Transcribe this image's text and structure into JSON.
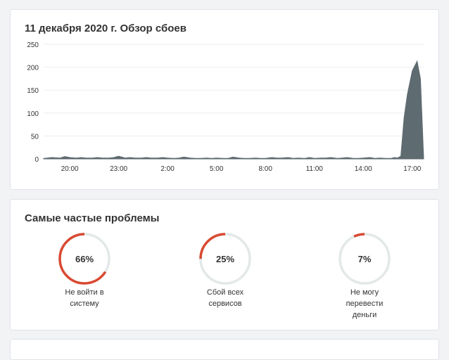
{
  "chart_title": "11 декабря 2020 г. Обзор сбоев",
  "problems_title": "Самые частые проблемы",
  "colors": {
    "area": "#5e6b70",
    "gauge_accent": "#d94a32",
    "gauge_track": "#e3e8e8"
  },
  "chart_data": {
    "type": "area",
    "title": "11 декабря 2020 г. Обзор сбоев",
    "xlabel": "",
    "ylabel": "",
    "ylim": [
      0,
      250
    ],
    "yticks": [
      0,
      50,
      100,
      150,
      200,
      250
    ],
    "xtick_labels": [
      "20:00",
      "23:00",
      "2:00",
      "5:00",
      "8:00",
      "11:00",
      "14:00",
      "17:00"
    ],
    "grid": true,
    "x_hours": [
      0,
      0.5,
      1,
      1.3,
      1.6,
      2,
      2.3,
      2.6,
      3,
      3.3,
      3.6,
      4,
      4.3,
      4.6,
      5,
      5.3,
      5.6,
      6,
      6.3,
      6.6,
      7,
      7.3,
      7.6,
      8,
      8.3,
      8.6,
      9,
      9.3,
      9.6,
      10,
      10.3,
      10.6,
      11,
      11.3,
      11.6,
      12,
      12.3,
      12.6,
      13,
      13.3,
      13.6,
      14,
      14.3,
      14.6,
      15,
      15.3,
      15.6,
      16,
      16.3,
      16.6,
      17,
      17.3,
      17.6,
      18,
      18.3,
      18.6,
      19,
      19.3,
      19.6,
      20,
      20.3,
      20.6,
      21,
      21.3,
      21.5,
      21.7,
      21.9,
      22.1,
      22.3,
      22.6,
      22.9,
      23.1,
      23.3
    ],
    "values": [
      1,
      3,
      2,
      5,
      3,
      2,
      3,
      2,
      2,
      3,
      2,
      2,
      3,
      6,
      2,
      3,
      2,
      2,
      3,
      2,
      2,
      3,
      2,
      1,
      2,
      4,
      2,
      1,
      1,
      2,
      1,
      2,
      1,
      1,
      4,
      2,
      1,
      1,
      2,
      1,
      1,
      3,
      2,
      2,
      3,
      1,
      2,
      1,
      3,
      1,
      2,
      2,
      3,
      1,
      2,
      3,
      1,
      1,
      2,
      3,
      1,
      2,
      1,
      1,
      3,
      2,
      6,
      90,
      140,
      192,
      213,
      175,
      0
    ]
  },
  "problems": [
    {
      "percent": 66,
      "percent_label": "66%",
      "label": "Не войти в систему"
    },
    {
      "percent": 25,
      "percent_label": "25%",
      "label": "Сбой всех сервисов"
    },
    {
      "percent": 7,
      "percent_label": "7%",
      "label": "Не могу перевести деньги"
    }
  ]
}
